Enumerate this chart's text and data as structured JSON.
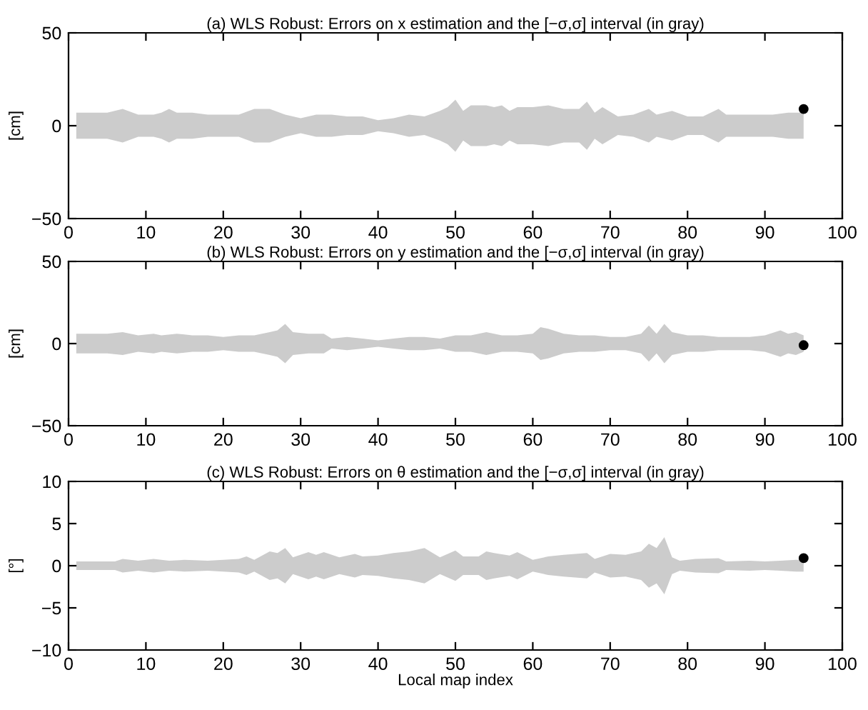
{
  "chart_data": [
    {
      "type": "area",
      "title": "(a) WLS Robust: Errors on x estimation and the [−σ,σ] interval (in gray)",
      "ylabel": "[cm]",
      "xlim": [
        0,
        100
      ],
      "ylim": [
        -50,
        50
      ],
      "xticks": [
        0,
        10,
        20,
        30,
        40,
        50,
        60,
        70,
        80,
        90,
        100
      ],
      "yticks": [
        -50,
        0,
        50
      ],
      "grid": false,
      "series": [
        {
          "color": "#cccccc",
          "values": [
            null,
            null,
            null,
            null,
            null,
            null,
            null,
            null,
            null,
            null,
            null,
            null,
            null,
            null,
            null,
            null,
            null,
            null,
            null,
            null,
            null,
            null,
            null,
            null,
            null,
            null,
            null,
            null,
            null,
            null,
            null,
            null,
            null,
            null,
            null,
            null,
            null,
            null,
            null,
            null,
            null,
            null,
            null,
            null,
            null,
            null,
            null,
            null,
            null,
            null,
            null,
            null,
            null,
            null,
            null
          ],
          "x": [
            1,
            5,
            7,
            9,
            11,
            12,
            13,
            14,
            16,
            18,
            20,
            22,
            24,
            26,
            28,
            30,
            32,
            34,
            36,
            38,
            40,
            42,
            44,
            46,
            48,
            49,
            50,
            51,
            52,
            54,
            55,
            56,
            57,
            58,
            60,
            62,
            64,
            66,
            67,
            68,
            69,
            71,
            73,
            75,
            76,
            78,
            80,
            82,
            84,
            85,
            87,
            89,
            91,
            93,
            95
          ],
          "upper": [
            7,
            7,
            9,
            6,
            6,
            7,
            9,
            7,
            7,
            6,
            6,
            6,
            9,
            9,
            6,
            4,
            6,
            6,
            5,
            5,
            3,
            4,
            6,
            5,
            8,
            10,
            14,
            8,
            11,
            11,
            10,
            11,
            8,
            10,
            10,
            11,
            9,
            9,
            13,
            7,
            10,
            5,
            6,
            9,
            6,
            8,
            5,
            5,
            9,
            6,
            6,
            6,
            6,
            7,
            7
          ],
          "lower": [
            -7,
            -7,
            -9,
            -6,
            -6,
            -7,
            -9,
            -7,
            -7,
            -6,
            -6,
            -6,
            -9,
            -9,
            -6,
            -4,
            -6,
            -6,
            -5,
            -5,
            -3,
            -4,
            -6,
            -5,
            -8,
            -10,
            -14,
            -8,
            -11,
            -11,
            -10,
            -11,
            -8,
            -10,
            -10,
            -11,
            -9,
            -9,
            -13,
            -7,
            -10,
            -5,
            -6,
            -9,
            -6,
            -8,
            -5,
            -5,
            -9,
            -6,
            -6,
            -6,
            -6,
            -7,
            -7
          ]
        },
        {
          "type": "scatter",
          "color": "#000000",
          "marker": "circle",
          "x": [
            95
          ],
          "values": [
            9
          ]
        }
      ]
    },
    {
      "type": "area",
      "title": "(b) WLS Robust: Errors on y estimation and the [−σ,σ] interval (in gray)",
      "ylabel": "[cm]",
      "xlim": [
        0,
        100
      ],
      "ylim": [
        -50,
        50
      ],
      "xticks": [
        0,
        10,
        20,
        30,
        40,
        50,
        60,
        70,
        80,
        90,
        100
      ],
      "yticks": [
        -50,
        0,
        50
      ],
      "grid": false,
      "series": [
        {
          "color": "#cccccc",
          "values": [
            null,
            null,
            null,
            null,
            null,
            null,
            null,
            null,
            null,
            null,
            null,
            null,
            null,
            null,
            null,
            null,
            null,
            null,
            null,
            null,
            null,
            null,
            null,
            null,
            null,
            null,
            null,
            null,
            null,
            null,
            null,
            null,
            null,
            null,
            null,
            null,
            null,
            null,
            null,
            null,
            null,
            null,
            null,
            null,
            null,
            null,
            null,
            null,
            null,
            null,
            null,
            null,
            null,
            null
          ],
          "x": [
            1,
            5,
            7,
            9,
            11,
            12,
            14,
            16,
            18,
            20,
            22,
            24,
            26,
            27,
            28,
            29,
            31,
            33,
            34,
            36,
            38,
            40,
            42,
            44,
            46,
            48,
            50,
            52,
            54,
            56,
            58,
            60,
            61,
            62,
            64,
            66,
            68,
            70,
            72,
            74,
            75,
            76,
            77,
            78,
            80,
            82,
            84,
            86,
            88,
            90,
            92,
            93,
            94,
            95
          ],
          "upper": [
            6,
            6,
            7,
            5,
            6,
            5,
            6,
            5,
            5,
            4,
            5,
            5,
            7,
            8,
            12,
            7,
            6,
            6,
            3,
            4,
            3,
            2,
            3,
            4,
            4,
            3,
            5,
            5,
            7,
            5,
            5,
            6,
            10,
            9,
            6,
            5,
            5,
            4,
            4,
            6,
            11,
            6,
            12,
            7,
            5,
            5,
            4,
            4,
            4,
            5,
            8,
            6,
            7,
            5
          ],
          "lower": [
            -6,
            -6,
            -7,
            -5,
            -6,
            -5,
            -6,
            -5,
            -5,
            -4,
            -5,
            -5,
            -7,
            -8,
            -12,
            -7,
            -6,
            -6,
            -3,
            -4,
            -3,
            -2,
            -3,
            -4,
            -4,
            -3,
            -5,
            -5,
            -7,
            -5,
            -5,
            -6,
            -10,
            -9,
            -6,
            -5,
            -5,
            -4,
            -4,
            -6,
            -11,
            -6,
            -12,
            -7,
            -5,
            -5,
            -4,
            -4,
            -4,
            -5,
            -8,
            -6,
            -7,
            -5
          ]
        },
        {
          "type": "scatter",
          "color": "#000000",
          "marker": "circle",
          "x": [
            95
          ],
          "values": [
            -1
          ]
        }
      ]
    },
    {
      "type": "area",
      "title": "(c) WLS Robust: Errors on θ estimation and the [−σ,σ] interval (in gray)",
      "xlabel": "Local map index",
      "ylabel": "[°]",
      "xlim": [
        0,
        100
      ],
      "ylim": [
        -10,
        10
      ],
      "xticks": [
        0,
        10,
        20,
        30,
        40,
        50,
        60,
        70,
        80,
        90,
        100
      ],
      "yticks": [
        -10,
        -5,
        0,
        5,
        10
      ],
      "grid": false,
      "series": [
        {
          "color": "#cccccc",
          "values": [
            null,
            null,
            null,
            null,
            null,
            null,
            null,
            null,
            null,
            null,
            null,
            null,
            null,
            null,
            null,
            null,
            null,
            null,
            null,
            null,
            null,
            null,
            null,
            null,
            null,
            null,
            null,
            null,
            null,
            null,
            null,
            null,
            null,
            null,
            null,
            null,
            null,
            null,
            null,
            null,
            null,
            null,
            null,
            null,
            null,
            null,
            null,
            null,
            null,
            null,
            null,
            null,
            null,
            null,
            null
          ],
          "x": [
            1,
            6,
            7,
            9,
            11,
            13,
            15,
            18,
            20,
            22,
            23,
            24,
            26,
            27,
            28,
            29,
            31,
            32,
            33,
            35,
            37,
            38,
            40,
            42,
            44,
            46,
            48,
            50,
            51,
            53,
            54,
            55,
            57,
            58,
            60,
            62,
            64,
            67,
            68,
            70,
            72,
            74,
            75,
            76,
            77,
            78,
            79,
            81,
            84,
            85,
            88,
            90,
            92,
            94,
            95
          ],
          "upper": [
            0.5,
            0.5,
            0.8,
            0.6,
            0.8,
            0.6,
            0.7,
            0.6,
            0.7,
            0.8,
            1.1,
            0.7,
            1.7,
            1.5,
            2.1,
            1.0,
            1.6,
            1.3,
            1.6,
            1.0,
            1.4,
            1.1,
            1.2,
            1.5,
            1.7,
            2.1,
            1.0,
            1.8,
            1.1,
            1.1,
            1.7,
            1.5,
            1.2,
            1.6,
            0.7,
            1.1,
            1.3,
            1.5,
            0.8,
            1.4,
            1.3,
            1.7,
            2.6,
            2.1,
            3.4,
            1.0,
            0.6,
            0.8,
            0.9,
            0.5,
            0.6,
            0.5,
            0.6,
            0.7,
            0.7
          ],
          "lower": [
            -0.5,
            -0.5,
            -0.8,
            -0.6,
            -0.8,
            -0.6,
            -0.7,
            -0.6,
            -0.7,
            -0.8,
            -1.1,
            -0.7,
            -1.7,
            -1.5,
            -2.1,
            -1.0,
            -1.6,
            -1.3,
            -1.6,
            -1.0,
            -1.4,
            -1.1,
            -1.2,
            -1.5,
            -1.7,
            -2.1,
            -1.0,
            -1.8,
            -1.1,
            -1.1,
            -1.7,
            -1.5,
            -1.2,
            -1.6,
            -0.7,
            -1.1,
            -1.3,
            -1.5,
            -0.8,
            -1.4,
            -1.3,
            -1.7,
            -2.6,
            -2.1,
            -3.4,
            -1.0,
            -0.6,
            -0.8,
            -0.9,
            -0.5,
            -0.6,
            -0.5,
            -0.6,
            -0.7,
            -0.7
          ]
        },
        {
          "type": "scatter",
          "color": "#000000",
          "marker": "circle",
          "x": [
            95
          ],
          "values": [
            0.9
          ]
        }
      ]
    }
  ]
}
